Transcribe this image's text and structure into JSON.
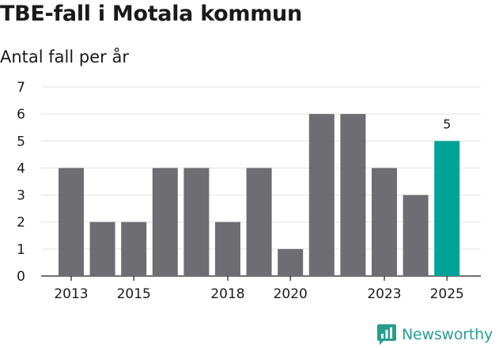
{
  "title": "TBE-fall i Motala kommun",
  "subtitle": "Antal fall per år",
  "brand": {
    "name": "Newsworthy",
    "icon": "newsworthy-logo-icon",
    "color": "#2a9d8f"
  },
  "chart_data": {
    "type": "bar",
    "title": "TBE-fall i Motala kommun",
    "subtitle": "Antal fall per år",
    "xlabel": "",
    "ylabel": "",
    "categories": [
      "2013",
      "2014",
      "2015",
      "2016",
      "2017",
      "2018",
      "2019",
      "2020",
      "2021",
      "2022",
      "2023",
      "2024",
      "2025"
    ],
    "x_tick_labels": [
      "2013",
      "2015",
      "2018",
      "2020",
      "2023",
      "2025"
    ],
    "values": [
      4,
      2,
      2,
      4,
      4,
      2,
      4,
      1,
      6,
      6,
      4,
      3,
      5
    ],
    "ylim": [
      0,
      7
    ],
    "yticks": [
      0,
      1,
      2,
      3,
      4,
      5,
      6,
      7
    ],
    "grid": true,
    "legend": "none",
    "highlight": {
      "category": "2025",
      "value_label": "5"
    },
    "colors": {
      "bar": "#6e6d72",
      "highlight": "#00a398",
      "grid": "#e3e3e3",
      "axis": "#1a1a1a",
      "text": "#1a1a1a"
    }
  }
}
